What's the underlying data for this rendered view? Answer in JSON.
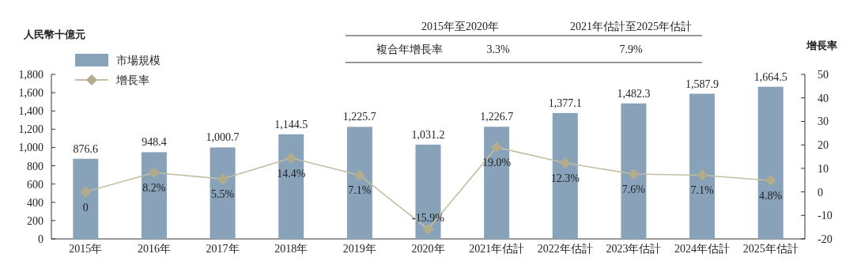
{
  "chart_data": {
    "type": "bar",
    "ylabel": "人民幣十億元",
    "y2label": "增長率",
    "categories": [
      "2015年",
      "2016年",
      "2017年",
      "2018年",
      "2019年",
      "2020年",
      "2021年估計",
      "2022年估計",
      "2023年估計",
      "2024年估計",
      "2025年估計"
    ],
    "series": [
      {
        "name": "市場規模",
        "color": "#87a2b9",
        "values": [
          876.6,
          948.4,
          1000.7,
          1144.5,
          1225.7,
          1031.2,
          1226.7,
          1377.1,
          1482.3,
          1587.9,
          1664.5
        ],
        "value_labels": [
          "876.6",
          "948.4",
          "1,000.7",
          "1,144.5",
          "1,225.7",
          "1,031.2",
          "1,226.7",
          "1,377.1",
          "1,482.3",
          "1,587.9",
          "1,664.5"
        ]
      },
      {
        "name": "增長率",
        "type": "line",
        "axis": "y2",
        "color": "#c4bea2",
        "values": [
          0,
          8.2,
          5.5,
          14.4,
          7.1,
          -15.9,
          19.0,
          12.3,
          7.6,
          7.1,
          4.8
        ],
        "value_labels": [
          "0",
          "8.2%",
          "5.5%",
          "14.4%",
          "7.1%",
          "-15.9%",
          "19.0%",
          "12.3%",
          "7.6%",
          "7.1%",
          "4.8%"
        ]
      }
    ],
    "ylim": [
      0,
      1800
    ],
    "yticks": [
      0,
      {
        "value": 200,
        "label": "200"
      },
      {
        "value": 400,
        "label": "400"
      },
      {
        "value": 600,
        "label": "600"
      },
      {
        "value": 800,
        "label": "800"
      },
      {
        "value": 1000,
        "label": "1,000"
      },
      {
        "value": 1200,
        "label": "1,200"
      },
      {
        "value": 1400,
        "label": "1,400"
      },
      {
        "value": 1600,
        "label": "1,600"
      },
      {
        "value": 1800,
        "label": "1,800"
      }
    ],
    "y2lim": [
      -20,
      50
    ],
    "y2ticks": [
      -20,
      -10,
      0,
      10,
      20,
      30,
      40,
      50
    ],
    "marker": "diamond",
    "legend": "top left",
    "grid": false,
    "annotations": [
      "2015年至2020年",
      "2021年估計至2025年估計",
      "複合年增長率",
      "3.3%",
      "7.9%"
    ]
  }
}
